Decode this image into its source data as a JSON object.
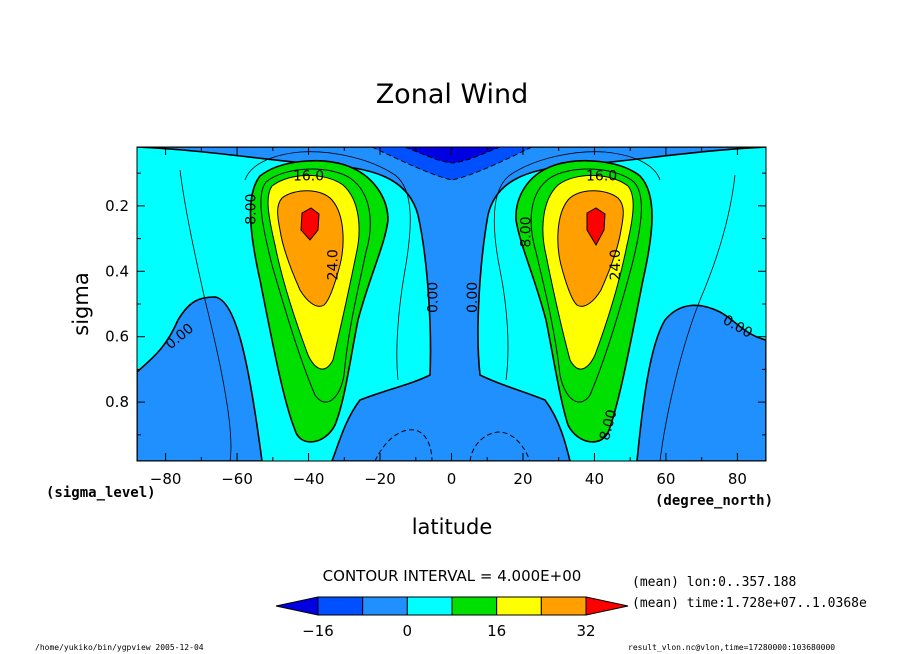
{
  "chart_data": {
    "type": "contour",
    "title": "Zonal Wind",
    "xlabel": "latitude",
    "ylabel": "sigma",
    "x_units": "(degree_north)",
    "y_units": "(sigma_level)",
    "xlim": [
      -88,
      88
    ],
    "ylim": [
      0.98,
      0.02
    ],
    "x_ticks": [
      -80,
      -60,
      -40,
      -20,
      0,
      20,
      40,
      60,
      80
    ],
    "y_ticks": [
      0.2,
      0.4,
      0.6,
      0.8
    ],
    "contour_interval_text": "CONTOUR INTERVAL = 4.000E+00",
    "contour_labels": [
      {
        "text": "16.0",
        "x": -40,
        "y": 0.11
      },
      {
        "text": "8.00",
        "x": -56,
        "y": 0.21,
        "rot": -90
      },
      {
        "text": "24.0",
        "x": -33,
        "y": 0.38,
        "rot": -90
      },
      {
        "text": "0.00",
        "x": -5,
        "y": 0.48,
        "rot": -90
      },
      {
        "text": "0.00",
        "x": 6,
        "y": 0.48,
        "rot": -90
      },
      {
        "text": "0.00",
        "x": -76,
        "y": 0.6,
        "rot": -40
      },
      {
        "text": "16.0",
        "x": 42,
        "y": 0.11
      },
      {
        "text": "8.00",
        "x": 21,
        "y": 0.28,
        "rot": -90
      },
      {
        "text": "24.0",
        "x": 46,
        "y": 0.38,
        "rot": -90
      },
      {
        "text": "8.00",
        "x": 44,
        "y": 0.87,
        "rot": -75
      },
      {
        "text": "0.00",
        "x": 80,
        "y": 0.57,
        "rot": 30
      }
    ],
    "colorbar": {
      "levels": [
        -16,
        -12,
        -8,
        -4,
        0,
        4,
        8,
        12,
        16,
        20,
        24,
        28,
        32
      ],
      "tick_labels": [
        "-16",
        "0",
        "16",
        "32"
      ],
      "tick_values": [
        -16,
        0,
        16,
        32
      ],
      "colors": [
        "#0050ff",
        "#2090ff",
        "#00ffff",
        "#00e000",
        "#ffff00",
        "#ffa000"
      ],
      "under_color": "#0000e0",
      "over_color": "#ff0000"
    },
    "info_lines": [
      "(mean) lon:0..357.188",
      "(mean) time:1.728e+07..1.0368e"
    ],
    "footer_left": "/home/yukiko/bin/ygpview  2005-12-04",
    "footer_right": "result_vlon.nc@vlon,time=17280000:103680000"
  }
}
